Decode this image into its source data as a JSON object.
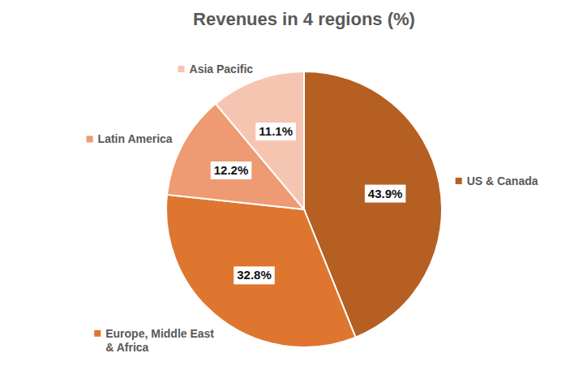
{
  "chart_data": {
    "type": "pie",
    "title": "Revenues in 4 regions (%)",
    "categories": [
      "US & Canada",
      "Europe, Middle East & Africa",
      "Latin America",
      "Asia Pacific"
    ],
    "values": [
      43.9,
      32.8,
      12.2,
      11.1
    ],
    "value_labels": [
      "43.9%",
      "32.8%",
      "12.2%",
      "11.1%"
    ],
    "colors": [
      "#b55f22",
      "#de7630",
      "#ee9a72",
      "#f6c5b1"
    ],
    "data_labels": true
  }
}
